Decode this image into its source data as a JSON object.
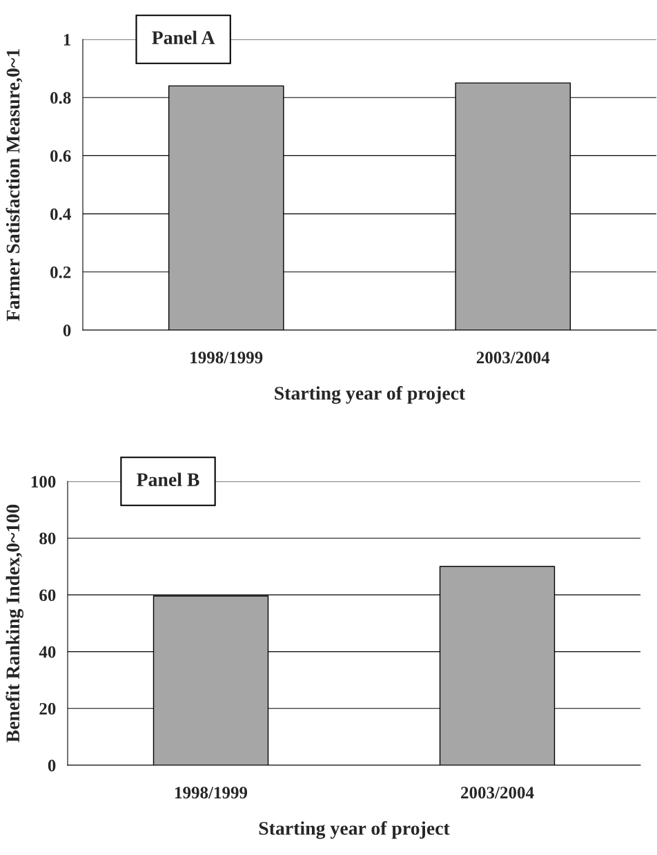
{
  "chart_data": [
    {
      "type": "bar",
      "categories": [
        "1998/1999",
        "2003/2004"
      ],
      "values": [
        0.84,
        0.85
      ],
      "color": "#a6a6a6",
      "xlabel": "Starting year of project",
      "ylabel": "Farmer Satisfaction Measure,0~1",
      "ylim": [
        0,
        1
      ],
      "yticks": [
        0,
        0.2,
        0.4,
        0.6,
        0.8,
        1
      ],
      "grid": "y",
      "annotations": [
        "Panel A"
      ]
    },
    {
      "type": "bar",
      "categories": [
        "1998/1999",
        "2003/2004"
      ],
      "values": [
        59.6,
        70
      ],
      "color": "#a6a6a6",
      "xlabel": "Starting year of project",
      "ylabel": "Benefit Ranking Index,0~100",
      "ylim": [
        0,
        100
      ],
      "yticks": [
        0,
        20,
        40,
        60,
        80,
        100
      ],
      "grid": "y",
      "annotations": [
        "Panel B"
      ]
    }
  ]
}
